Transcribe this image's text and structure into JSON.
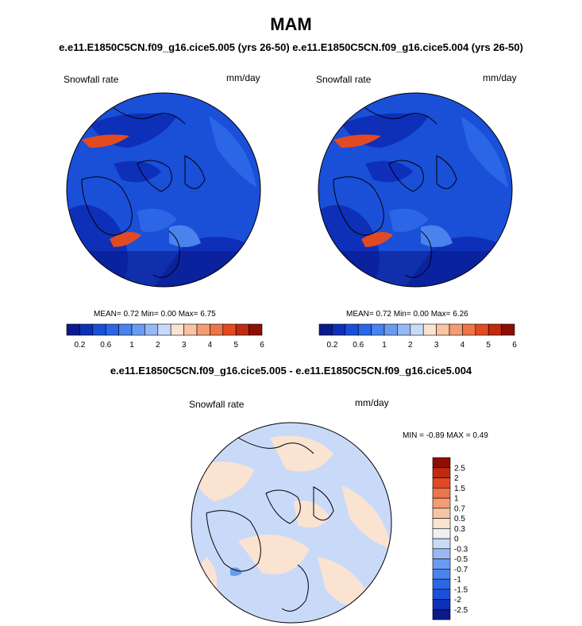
{
  "figure": {
    "title": "MAM",
    "subtitle": "e.e11.E1850C5CN.f09_g16.cice5.005 (yrs 26-50)  e.e11.E1850C5CN.f09_g16.cice5.004 (yrs 26-50)",
    "diff_title": "e.e11.E1850C5CN.f09_g16.cice5.005 - e.e11.E1850C5CN.f09_g16.cice5.004"
  },
  "panels": [
    {
      "variable": "Snowfall rate",
      "units": "mm/day",
      "stats": "MEAN=   0.72  Min=   0.00  Max=   6.75"
    },
    {
      "variable": "Snowfall rate",
      "units": "mm/day",
      "stats": "MEAN=   0.72  Min=   0.00  Max=   6.26"
    }
  ],
  "diff_panel": {
    "variable": "Snowfall rate",
    "units": "mm/day",
    "stats": "MIN =  -0.89 MAX =   0.49"
  },
  "colorbar_abs": {
    "colors": [
      "#0a1a8c",
      "#0e2fb8",
      "#1a4fd8",
      "#2a66e6",
      "#4a82ee",
      "#6a9bf0",
      "#98b8f4",
      "#c8daf8",
      "#fbe3d2",
      "#f8c4a4",
      "#f49c74",
      "#ee744a",
      "#e14a22",
      "#bf2a10",
      "#8c0e06"
    ],
    "tick_labels": [
      "0.2",
      "0.6",
      "1",
      "2",
      "3",
      "4",
      "5",
      "6"
    ],
    "tick_positions": [
      0,
      2,
      4,
      6,
      8,
      10,
      12,
      14
    ]
  },
  "colorbar_diff": {
    "colors": [
      "#0a1a8c",
      "#0e2fb8",
      "#1a4fd8",
      "#2a66e6",
      "#4a82ee",
      "#6a9bf0",
      "#98b8f4",
      "#c8daf8",
      "#eef0f2",
      "#fbe3d2",
      "#f8c4a4",
      "#f49c74",
      "#ee744a",
      "#e14a22",
      "#bf2a10",
      "#8c0e06"
    ],
    "tick_labels": [
      "-2.5",
      "-2",
      "-1.5",
      "-1",
      "-0.7",
      "-0.5",
      "-0.3",
      "0",
      "0.3",
      "0.5",
      "0.7",
      "1",
      "1.5",
      "2",
      "2.5"
    ]
  }
}
